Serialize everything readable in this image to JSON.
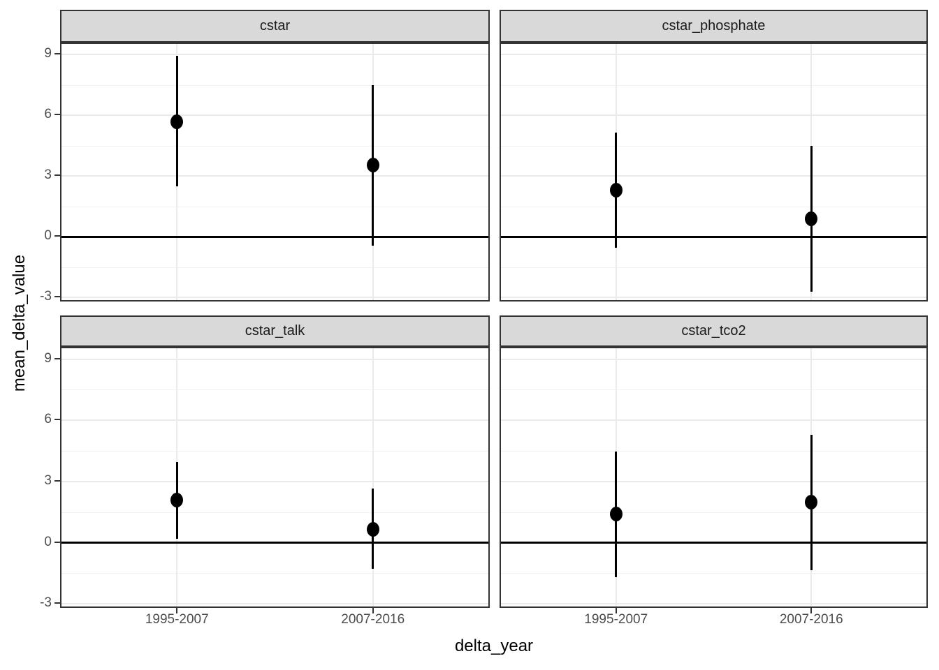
{
  "figure": {
    "y_axis_title": "mean_delta_value",
    "x_axis_title": "delta_year"
  },
  "chart_data": {
    "type": "pointrange",
    "title": "",
    "xlabel": "delta_year",
    "ylabel": "mean_delta_value",
    "x_categories": [
      "1995-2007",
      "2007-2016"
    ],
    "y_ticks": [
      -3,
      0,
      3,
      6,
      9
    ],
    "y_minor_ticks": [
      -1.5,
      1.5,
      4.5,
      7.5
    ],
    "ylim": [
      -3.2,
      9.6
    ],
    "grid": true,
    "zero_reference_line": 0,
    "facets": [
      {
        "label": "cstar",
        "row": 0,
        "col": 0,
        "points": [
          {
            "x": "1995-2007",
            "mean": 5.7,
            "lo": 2.5,
            "hi": 8.95
          },
          {
            "x": "2007-2016",
            "mean": 3.55,
            "lo": -0.45,
            "hi": 7.5
          }
        ]
      },
      {
        "label": "cstar_phosphate",
        "row": 0,
        "col": 1,
        "points": [
          {
            "x": "1995-2007",
            "mean": 2.3,
            "lo": -0.55,
            "hi": 5.15
          },
          {
            "x": "2007-2016",
            "mean": 0.9,
            "lo": -2.7,
            "hi": 4.5
          }
        ]
      },
      {
        "label": "cstar_talk",
        "row": 1,
        "col": 0,
        "points": [
          {
            "x": "1995-2007",
            "mean": 2.1,
            "lo": 0.2,
            "hi": 3.95
          },
          {
            "x": "2007-2016",
            "mean": 0.65,
            "lo": -1.3,
            "hi": 2.65
          }
        ]
      },
      {
        "label": "cstar_tco2",
        "row": 1,
        "col": 1,
        "points": [
          {
            "x": "1995-2007",
            "mean": 1.4,
            "lo": -1.7,
            "hi": 4.45
          },
          {
            "x": "2007-2016",
            "mean": 2.0,
            "lo": -1.35,
            "hi": 5.3
          }
        ]
      }
    ],
    "style": {
      "strip_fill": "#D9D9D9",
      "strip_text_color": "#1A1A1A",
      "panel_border_color": "#333333",
      "grid_major_color": "#EBEBEB",
      "grid_minor_color": "#F2F2F2",
      "tick_label_color": "#4D4D4D",
      "tick_mark_color": "#333333",
      "point_color": "#000000",
      "zero_line_color": "#000000",
      "background": "#FFFFFF"
    }
  }
}
